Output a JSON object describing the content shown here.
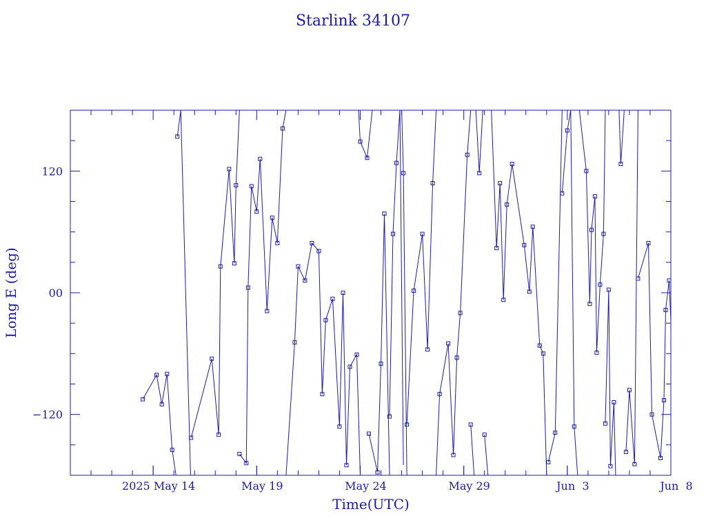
{
  "chart_data": {
    "type": "line",
    "title": "Starlink 34107",
    "xlabel": "Time(UTC)",
    "ylabel": "Long E (deg)",
    "x_is_date": true,
    "xlim": [
      "2025-05-10T00:00",
      "2025-06-08T00:00"
    ],
    "ylim": [
      -180,
      180
    ],
    "x_ticks": [
      {
        "date": "2025-05-14",
        "label": "2025 May 14"
      },
      {
        "date": "2025-05-19",
        "label": "May 19"
      },
      {
        "date": "2025-05-24",
        "label": "May 24"
      },
      {
        "date": "2025-05-29",
        "label": "May 29"
      },
      {
        "date": "2025-06-03",
        "label": "Jun  3"
      },
      {
        "date": "2025-06-08",
        "label": "Jun  8"
      }
    ],
    "y_ticks": [
      {
        "value": -120,
        "label": "−120"
      },
      {
        "value": 0,
        "label": "00"
      },
      {
        "value": 120,
        "label": "120"
      }
    ],
    "grid": false,
    "series": [
      {
        "points": [
          [
            "2025-05-13T12:00",
            -105
          ],
          [
            "2025-05-14T04:00",
            -81
          ],
          [
            "2025-05-14T10:00",
            -110
          ],
          [
            "2025-05-14T16:00",
            -80
          ],
          [
            "2025-05-14T22:00",
            -155
          ],
          [
            "2025-05-15T06:00",
            -200,
            "gap"
          ],
          [
            "2025-05-15T04:00",
            154
          ],
          [
            "2025-05-15T08:00",
            180
          ],
          [
            "2025-05-15T20:00",
            -200,
            "gap"
          ],
          [
            "2025-05-15T20:00",
            -143
          ],
          [
            "2025-05-16T20:00",
            -65
          ],
          [
            "2025-05-17T04:00",
            -140
          ],
          [
            "2025-05-17T06:00",
            26
          ],
          [
            "2025-05-17T16:00",
            122
          ],
          [
            "2025-05-17T22:00",
            29
          ],
          [
            "2025-05-18T00:00",
            106
          ],
          [
            "2025-05-18T04:00",
            180,
            "gap"
          ],
          [
            "2025-05-18T04:00",
            -159
          ],
          [
            "2025-05-18T12:00",
            -168
          ],
          [
            "2025-05-18T14:00",
            5
          ],
          [
            "2025-05-18T18:00",
            105
          ],
          [
            "2025-05-19T00:00",
            80
          ],
          [
            "2025-05-19T04:00",
            132
          ],
          [
            "2025-05-19T12:00",
            -18
          ],
          [
            "2025-05-19T18:00",
            74
          ],
          [
            "2025-05-20T00:00",
            49
          ],
          [
            "2025-05-20T06:00",
            162
          ],
          [
            "2025-05-20T10:00",
            180,
            "gap"
          ],
          [
            "2025-05-20T10:00",
            -180
          ],
          [
            "2025-05-20T20:00",
            -49
          ],
          [
            "2025-05-21T00:00",
            26
          ],
          [
            "2025-05-21T08:00",
            12
          ],
          [
            "2025-05-21T16:00",
            49
          ],
          [
            "2025-05-22T00:00",
            41
          ],
          [
            "2025-05-22T04:00",
            -100
          ],
          [
            "2025-05-22T08:00",
            -27
          ],
          [
            "2025-05-22T16:00",
            -6
          ],
          [
            "2025-05-23T00:00",
            -132
          ],
          [
            "2025-05-23T04:00",
            0
          ],
          [
            "2025-05-23T08:00",
            -170
          ],
          [
            "2025-05-23T12:00",
            -73
          ],
          [
            "2025-05-23T20:00",
            -61
          ],
          [
            "2025-05-24T00:00",
            -180,
            "gap"
          ],
          [
            "2025-05-23T22:00",
            180
          ],
          [
            "2025-05-24T00:00",
            149
          ],
          [
            "2025-05-24T08:00",
            133
          ],
          [
            "2025-05-24T14:00",
            180,
            "gap"
          ],
          [
            "2025-05-24T10:00",
            -139
          ],
          [
            "2025-05-24T20:00",
            -177
          ],
          [
            "2025-05-25T00:00",
            -70
          ],
          [
            "2025-05-25T04:00",
            78
          ],
          [
            "2025-05-25T10:00",
            -180,
            "gap"
          ],
          [
            "2025-05-25T10:00",
            -122
          ],
          [
            "2025-05-25T14:00",
            58
          ],
          [
            "2025-05-25T18:00",
            128
          ],
          [
            "2025-05-25T22:00",
            180
          ],
          [
            "2025-05-26T02:00",
            -170,
            "gap"
          ],
          [
            "2025-05-26T00:00",
            180
          ],
          [
            "2025-05-26T02:00",
            118
          ],
          [
            "2025-05-26T06:00",
            -180,
            "gap"
          ],
          [
            "2025-05-26T06:00",
            -130
          ],
          [
            "2025-05-26T14:00",
            2
          ],
          [
            "2025-05-27T00:00",
            58
          ],
          [
            "2025-05-27T06:00",
            -56
          ],
          [
            "2025-05-27T12:00",
            108
          ],
          [
            "2025-05-27T16:00",
            180,
            "gap"
          ],
          [
            "2025-05-27T16:00",
            -180
          ],
          [
            "2025-05-27T20:00",
            -100
          ],
          [
            "2025-05-28T06:00",
            -50
          ],
          [
            "2025-05-28T12:00",
            -160
          ],
          [
            "2025-05-28T16:00",
            -64
          ],
          [
            "2025-05-28T20:00",
            -20
          ],
          [
            "2025-05-29T04:00",
            136
          ],
          [
            "2025-05-29T08:00",
            180,
            "gap"
          ],
          [
            "2025-05-29T08:00",
            -130
          ],
          [
            "2025-05-29T12:00",
            -180,
            "gap"
          ],
          [
            "2025-05-29T14:00",
            180
          ],
          [
            "2025-05-29T18:00",
            118
          ],
          [
            "2025-05-29T22:00",
            180,
            "gap"
          ],
          [
            "2025-05-30T00:00",
            -140
          ],
          [
            "2025-05-30T04:00",
            -180,
            "gap"
          ],
          [
            "2025-05-30T08:00",
            180
          ],
          [
            "2025-05-30T14:00",
            44
          ],
          [
            "2025-05-30T18:00",
            108
          ],
          [
            "2025-05-30T22:00",
            -7
          ],
          [
            "2025-05-31T02:00",
            87
          ],
          [
            "2025-05-31T08:00",
            127
          ],
          [
            "2025-05-31T22:00",
            47
          ],
          [
            "2025-06-01T04:00",
            1
          ],
          [
            "2025-06-01T08:00",
            65
          ],
          [
            "2025-06-01T16:00",
            -52
          ],
          [
            "2025-06-01T20:00",
            -60
          ],
          [
            "2025-06-02T00:00",
            -180,
            "gap"
          ],
          [
            "2025-06-02T02:00",
            -167
          ],
          [
            "2025-06-02T10:00",
            -138
          ],
          [
            "2025-06-02T18:00",
            180,
            "gap"
          ],
          [
            "2025-06-02T18:00",
            98
          ],
          [
            "2025-06-03T00:00",
            160
          ],
          [
            "2025-06-03T04:00",
            180
          ],
          [
            "2025-06-03T08:00",
            -132
          ],
          [
            "2025-06-03T12:00",
            -180,
            "gap"
          ],
          [
            "2025-06-03T14:00",
            180
          ],
          [
            "2025-06-03T22:00",
            120
          ],
          [
            "2025-06-04T02:00",
            -11
          ],
          [
            "2025-06-04T04:00",
            62
          ],
          [
            "2025-06-04T08:00",
            95
          ],
          [
            "2025-06-04T10:00",
            -59
          ],
          [
            "2025-06-04T14:00",
            8
          ],
          [
            "2025-06-04T18:00",
            58
          ],
          [
            "2025-06-04T20:00",
            180,
            "gap"
          ],
          [
            "2025-06-04T20:00",
            -129
          ],
          [
            "2025-06-05T00:00",
            3
          ],
          [
            "2025-06-05T02:00",
            -171
          ],
          [
            "2025-06-05T06:00",
            -108
          ],
          [
            "2025-06-05T08:00",
            -180,
            "gap"
          ],
          [
            "2025-06-05T12:00",
            180
          ],
          [
            "2025-06-05T14:00",
            127
          ],
          [
            "2025-06-05T18:00",
            180,
            "gap"
          ],
          [
            "2025-06-05T20:00",
            -157
          ],
          [
            "2025-06-06T00:00",
            -96
          ],
          [
            "2025-06-06T06:00",
            -169
          ],
          [
            "2025-06-06T10:00",
            180,
            "gap"
          ],
          [
            "2025-06-06T10:00",
            14
          ],
          [
            "2025-06-06T22:00",
            49
          ],
          [
            "2025-06-07T02:00",
            -120
          ],
          [
            "2025-06-07T12:00",
            -163
          ],
          [
            "2025-06-07T16:00",
            -106
          ],
          [
            "2025-06-07T18:00",
            -17
          ],
          [
            "2025-06-07T22:00",
            12
          ],
          [
            "2025-06-08T02:00",
            -68
          ],
          [
            "2025-06-08T16:00",
            -180
          ]
        ]
      }
    ]
  }
}
